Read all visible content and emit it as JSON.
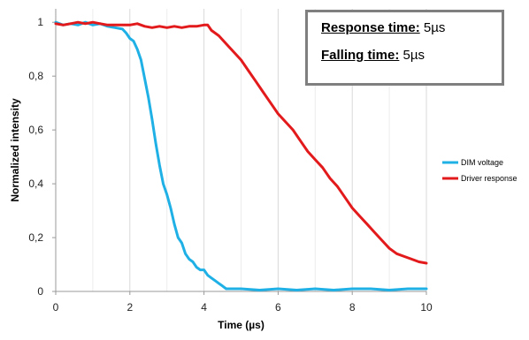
{
  "chart_data": {
    "type": "line",
    "xlabel": "Time (µs)",
    "ylabel": "Normalized intensity",
    "xlim": [
      0,
      10
    ],
    "ylim": [
      0,
      1.05
    ],
    "xticks": [
      0,
      2,
      4,
      6,
      8,
      10
    ],
    "xtick_labels": [
      "0",
      "2",
      "4",
      "6",
      "8",
      "10"
    ],
    "yticks": [
      0,
      0.2,
      0.4,
      0.6,
      0.8,
      1
    ],
    "ytick_labels": [
      "0",
      "0,2",
      "0,4",
      "0,6",
      "0,8",
      "1"
    ],
    "grid": "vertical",
    "legend_position": "right",
    "series": [
      {
        "name": "DIM voltage",
        "color": "#1fb0e6",
        "x": [
          0,
          0.2,
          0.4,
          0.6,
          0.8,
          1.0,
          1.2,
          1.4,
          1.6,
          1.8,
          1.9,
          2.0,
          2.1,
          2.2,
          2.3,
          2.4,
          2.5,
          2.6,
          2.7,
          2.8,
          2.9,
          3.0,
          3.1,
          3.2,
          3.3,
          3.4,
          3.5,
          3.6,
          3.7,
          3.8,
          3.9,
          4.0,
          4.1,
          4.2,
          4.3,
          4.4,
          4.5,
          4.6,
          4.8,
          5.0,
          5.5,
          6.0,
          6.5,
          7.0,
          7.5,
          8.0,
          8.5,
          9.0,
          9.5,
          10.0
        ],
        "y": [
          1.0,
          0.99,
          0.995,
          0.99,
          1.0,
          0.99,
          0.995,
          0.985,
          0.98,
          0.975,
          0.96,
          0.94,
          0.93,
          0.9,
          0.86,
          0.79,
          0.72,
          0.64,
          0.55,
          0.47,
          0.4,
          0.36,
          0.31,
          0.25,
          0.2,
          0.18,
          0.14,
          0.12,
          0.11,
          0.09,
          0.08,
          0.08,
          0.06,
          0.05,
          0.04,
          0.03,
          0.02,
          0.01,
          0.01,
          0.01,
          0.005,
          0.01,
          0.005,
          0.01,
          0.005,
          0.01,
          0.01,
          0.005,
          0.01,
          0.01
        ]
      },
      {
        "name": "Driver response",
        "color": "#e31a1c",
        "x": [
          0,
          0.2,
          0.4,
          0.6,
          0.8,
          1.0,
          1.2,
          1.4,
          1.6,
          1.8,
          2.0,
          2.2,
          2.4,
          2.6,
          2.8,
          3.0,
          3.2,
          3.4,
          3.6,
          3.8,
          4.0,
          4.1,
          4.2,
          4.4,
          4.6,
          4.8,
          5.0,
          5.2,
          5.4,
          5.6,
          5.8,
          6.0,
          6.2,
          6.4,
          6.6,
          6.8,
          7.0,
          7.2,
          7.4,
          7.6,
          7.8,
          8.0,
          8.2,
          8.4,
          8.6,
          8.8,
          9.0,
          9.2,
          9.4,
          9.6,
          9.8,
          10.0
        ],
        "y": [
          0.995,
          0.99,
          0.995,
          1.0,
          0.995,
          1.0,
          0.995,
          0.99,
          0.99,
          0.99,
          0.99,
          0.995,
          0.985,
          0.98,
          0.985,
          0.98,
          0.985,
          0.98,
          0.985,
          0.985,
          0.99,
          0.99,
          0.97,
          0.95,
          0.92,
          0.89,
          0.86,
          0.82,
          0.78,
          0.74,
          0.7,
          0.66,
          0.63,
          0.6,
          0.56,
          0.52,
          0.49,
          0.46,
          0.42,
          0.39,
          0.35,
          0.31,
          0.28,
          0.25,
          0.22,
          0.19,
          0.16,
          0.14,
          0.13,
          0.12,
          0.11,
          0.105
        ]
      }
    ],
    "annotations": [
      {
        "label": "Response time:",
        "value": "5µs"
      },
      {
        "label": "Falling time:",
        "value": "5µs"
      }
    ]
  }
}
